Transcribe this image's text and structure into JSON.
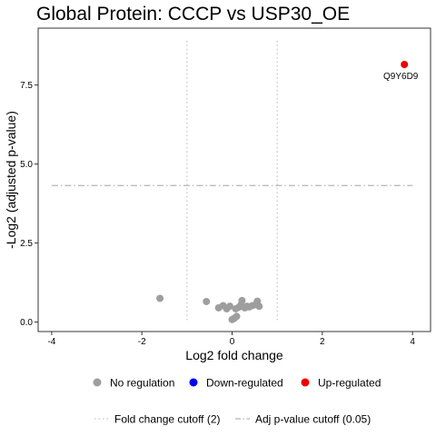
{
  "chart_data": {
    "type": "scatter",
    "title": "Global Protein: CCCP vs USP30_OE",
    "xlabel": "Log2 fold change",
    "ylabel": "-Log2 (adjusted p-value)",
    "xlim": [
      -4.3,
      4.4
    ],
    "ylim": [
      -0.3,
      9.3
    ],
    "x_ticks": [
      -4,
      -2,
      0,
      2,
      4
    ],
    "x_tick_labels": [
      "-4",
      "-2",
      "0",
      "2",
      "4"
    ],
    "y_ticks": [
      0,
      2.5,
      5,
      7.5
    ],
    "y_tick_labels": [
      "0.0",
      "2.5",
      "5.0",
      "7.5"
    ],
    "grid": false,
    "fold_change_cutoff": [
      -1,
      1
    ],
    "adj_p_cutoff_y": 4.32,
    "colors": {
      "no_regulation": "#9e9e9e",
      "down_regulated": "#0000ee",
      "up_regulated": "#ee0000",
      "cutoff_line": "#b5b5b5"
    },
    "series": [
      {
        "name": "No regulation",
        "color_key": "no_regulation",
        "points": [
          {
            "x": -1.6,
            "y": 0.75
          },
          {
            "x": -0.57,
            "y": 0.65
          },
          {
            "x": -0.3,
            "y": 0.45
          },
          {
            "x": -0.2,
            "y": 0.52
          },
          {
            "x": -0.12,
            "y": 0.42
          },
          {
            "x": -0.05,
            "y": 0.5
          },
          {
            "x": 0.0,
            "y": 0.08
          },
          {
            "x": 0.05,
            "y": 0.12
          },
          {
            "x": 0.1,
            "y": 0.18
          },
          {
            "x": 0.08,
            "y": 0.42
          },
          {
            "x": 0.15,
            "y": 0.47
          },
          {
            "x": 0.2,
            "y": 0.55
          },
          {
            "x": 0.22,
            "y": 0.68
          },
          {
            "x": 0.28,
            "y": 0.45
          },
          {
            "x": 0.33,
            "y": 0.5
          },
          {
            "x": 0.38,
            "y": 0.48
          },
          {
            "x": 0.45,
            "y": 0.52
          },
          {
            "x": 0.52,
            "y": 0.55
          },
          {
            "x": 0.56,
            "y": 0.66
          },
          {
            "x": 0.6,
            "y": 0.5
          }
        ]
      },
      {
        "name": "Down-regulated",
        "color_key": "down_regulated",
        "points": []
      },
      {
        "name": "Up-regulated",
        "color_key": "up_regulated",
        "points": [
          {
            "x": 3.82,
            "y": 8.15,
            "label": "Q9Y6D9"
          }
        ]
      }
    ],
    "legend": {
      "placement": "bottom",
      "items": [
        {
          "label": "No regulation",
          "color_key": "no_regulation"
        },
        {
          "label": "Down-regulated",
          "color_key": "down_regulated"
        },
        {
          "label": "Up-regulated",
          "color_key": "up_regulated"
        }
      ],
      "line_items": [
        {
          "label": "Fold change cutoff (2)",
          "style": "dotted"
        },
        {
          "label": "Adj p-value cutoff (0.05)",
          "style": "dashdot"
        }
      ]
    }
  }
}
